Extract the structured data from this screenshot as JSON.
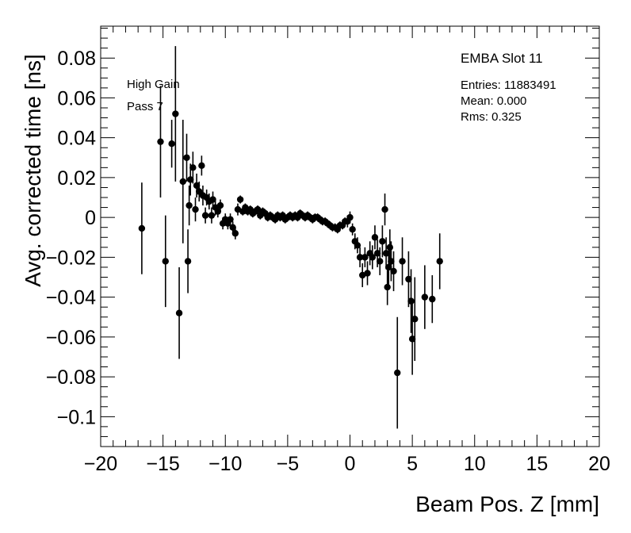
{
  "chart_data": {
    "type": "scatter",
    "xlabel": "Beam Pos. Z [mm]",
    "ylabel": "Avg. corrected time [ns]",
    "xlim": [
      -20,
      20
    ],
    "ylim": [
      -0.115,
      0.096
    ],
    "xticks": [
      -20,
      -15,
      -10,
      -5,
      0,
      5,
      10,
      15,
      20
    ],
    "xtick_labels": [
      "−20",
      "−15",
      "−10",
      "−5",
      "0",
      "5",
      "10",
      "15",
      "20"
    ],
    "yticks": [
      0.08,
      0.06,
      0.04,
      0.02,
      0,
      -0.02,
      -0.04,
      -0.06,
      -0.08,
      -0.1
    ],
    "ytick_labels": [
      "0.08",
      "0.06",
      "0.04",
      "0.02",
      "0",
      "−0.02",
      "−0.04",
      "−0.06",
      "−0.08",
      "−0.1"
    ],
    "annotations": [
      "High Gain",
      "Pass 7"
    ],
    "legend": {
      "title": "EMBA Slot 11",
      "entries": [
        "Entries: 11883491",
        "Mean: 0.000",
        "Rms: 0.325"
      ],
      "placement": "top-right"
    },
    "grid": false,
    "marker_color": "#000000",
    "points": [
      {
        "x": -16.7,
        "y": -0.0055,
        "err": 0.023
      },
      {
        "x": -15.2,
        "y": 0.038,
        "err": 0.028
      },
      {
        "x": -14.8,
        "y": -0.022,
        "err": 0.023
      },
      {
        "x": -14.3,
        "y": 0.037,
        "err": 0.012
      },
      {
        "x": -14.0,
        "y": 0.052,
        "err": 0.034
      },
      {
        "x": -13.7,
        "y": -0.048,
        "err": 0.023
      },
      {
        "x": -13.4,
        "y": 0.018,
        "err": 0.031
      },
      {
        "x": -13.1,
        "y": 0.03,
        "err": 0.012
      },
      {
        "x": -13.0,
        "y": -0.022,
        "err": 0.016
      },
      {
        "x": -12.9,
        "y": 0.006,
        "err": 0.01
      },
      {
        "x": -12.8,
        "y": 0.019,
        "err": 0.008
      },
      {
        "x": -12.6,
        "y": 0.025,
        "err": 0.008
      },
      {
        "x": -12.4,
        "y": 0.004,
        "err": 0.006
      },
      {
        "x": -12.3,
        "y": 0.016,
        "err": 0.006
      },
      {
        "x": -12.1,
        "y": 0.013,
        "err": 0.005
      },
      {
        "x": -11.9,
        "y": 0.026,
        "err": 0.005
      },
      {
        "x": -11.8,
        "y": 0.011,
        "err": 0.005
      },
      {
        "x": -11.6,
        "y": 0.001,
        "err": 0.004
      },
      {
        "x": -11.5,
        "y": 0.01,
        "err": 0.004
      },
      {
        "x": -11.3,
        "y": 0.008,
        "err": 0.004
      },
      {
        "x": -11.1,
        "y": 0.001,
        "err": 0.004
      },
      {
        "x": -11.0,
        "y": 0.009,
        "err": 0.004
      },
      {
        "x": -10.8,
        "y": 0.005,
        "err": 0.004
      },
      {
        "x": -10.6,
        "y": 0.003,
        "err": 0.003
      },
      {
        "x": -10.4,
        "y": 0.006,
        "err": 0.003
      },
      {
        "x": -10.2,
        "y": -0.003,
        "err": 0.003
      },
      {
        "x": -10.0,
        "y": -0.001,
        "err": 0.003
      },
      {
        "x": -9.8,
        "y": -0.003,
        "err": 0.003
      },
      {
        "x": -9.6,
        "y": -0.001,
        "err": 0.003
      },
      {
        "x": -9.4,
        "y": -0.005,
        "err": 0.003
      },
      {
        "x": -9.2,
        "y": -0.008,
        "err": 0.003
      },
      {
        "x": -9.0,
        "y": 0.004,
        "err": 0.003
      },
      {
        "x": -8.8,
        "y": 0.009,
        "err": 0.002
      },
      {
        "x": -8.6,
        "y": 0.003,
        "err": 0.002
      },
      {
        "x": -8.4,
        "y": 0.005,
        "err": 0.002
      },
      {
        "x": -8.2,
        "y": 0.003,
        "err": 0.002
      },
      {
        "x": -8.0,
        "y": 0.004,
        "err": 0.002
      },
      {
        "x": -7.8,
        "y": 0.002,
        "err": 0.002
      },
      {
        "x": -7.6,
        "y": 0.003,
        "err": 0.002
      },
      {
        "x": -7.4,
        "y": 0.004,
        "err": 0.002
      },
      {
        "x": -7.2,
        "y": 0.001,
        "err": 0.002
      },
      {
        "x": -7.0,
        "y": 0.003,
        "err": 0.002
      },
      {
        "x": -6.8,
        "y": 0.002,
        "err": 0.002
      },
      {
        "x": -6.6,
        "y": 0.0,
        "err": 0.002
      },
      {
        "x": -6.4,
        "y": 0.001,
        "err": 0.002
      },
      {
        "x": -6.2,
        "y": 0.0,
        "err": 0.002
      },
      {
        "x": -6.0,
        "y": -0.001,
        "err": 0.002
      },
      {
        "x": -5.8,
        "y": 0.001,
        "err": 0.002
      },
      {
        "x": -5.6,
        "y": 0.0,
        "err": 0.002
      },
      {
        "x": -5.4,
        "y": 0.001,
        "err": 0.002
      },
      {
        "x": -5.2,
        "y": -0.001,
        "err": 0.002
      },
      {
        "x": -5.0,
        "y": 0.0,
        "err": 0.002
      },
      {
        "x": -4.8,
        "y": 0.001,
        "err": 0.002
      },
      {
        "x": -4.6,
        "y": 0.0,
        "err": 0.002
      },
      {
        "x": -4.4,
        "y": 0.001,
        "err": 0.002
      },
      {
        "x": -4.2,
        "y": 0.0,
        "err": 0.002
      },
      {
        "x": -4.0,
        "y": 0.002,
        "err": 0.002
      },
      {
        "x": -3.8,
        "y": 0.001,
        "err": 0.002
      },
      {
        "x": -3.6,
        "y": 0.0,
        "err": 0.002
      },
      {
        "x": -3.4,
        "y": 0.001,
        "err": 0.002
      },
      {
        "x": -3.2,
        "y": 0.0,
        "err": 0.002
      },
      {
        "x": -3.0,
        "y": -0.001,
        "err": 0.002
      },
      {
        "x": -2.8,
        "y": 0.0,
        "err": 0.002
      },
      {
        "x": -2.6,
        "y": 0.0,
        "err": 0.002
      },
      {
        "x": -2.4,
        "y": -0.001,
        "err": 0.002
      },
      {
        "x": -2.2,
        "y": -0.002,
        "err": 0.002
      },
      {
        "x": -2.0,
        "y": -0.002,
        "err": 0.002
      },
      {
        "x": -1.8,
        "y": -0.003,
        "err": 0.002
      },
      {
        "x": -1.6,
        "y": -0.004,
        "err": 0.002
      },
      {
        "x": -1.4,
        "y": -0.005,
        "err": 0.002
      },
      {
        "x": -1.2,
        "y": -0.005,
        "err": 0.002
      },
      {
        "x": -1.0,
        "y": -0.006,
        "err": 0.002
      },
      {
        "x": -0.8,
        "y": -0.004,
        "err": 0.002
      },
      {
        "x": -0.6,
        "y": -0.004,
        "err": 0.002
      },
      {
        "x": -0.4,
        "y": -0.002,
        "err": 0.002
      },
      {
        "x": -0.2,
        "y": -0.002,
        "err": 0.003
      },
      {
        "x": 0.0,
        "y": 0.0,
        "err": 0.003
      },
      {
        "x": 0.2,
        "y": -0.006,
        "err": 0.003
      },
      {
        "x": 0.4,
        "y": -0.012,
        "err": 0.004
      },
      {
        "x": 0.6,
        "y": -0.014,
        "err": 0.004
      },
      {
        "x": 0.8,
        "y": -0.02,
        "err": 0.005
      },
      {
        "x": 1.0,
        "y": -0.029,
        "err": 0.006
      },
      {
        "x": 1.2,
        "y": -0.02,
        "err": 0.005
      },
      {
        "x": 1.4,
        "y": -0.028,
        "err": 0.006
      },
      {
        "x": 1.6,
        "y": -0.018,
        "err": 0.006
      },
      {
        "x": 1.8,
        "y": -0.02,
        "err": 0.006
      },
      {
        "x": 2.0,
        "y": -0.01,
        "err": 0.006
      },
      {
        "x": 2.2,
        "y": -0.018,
        "err": 0.007
      },
      {
        "x": 2.4,
        "y": -0.022,
        "err": 0.007
      },
      {
        "x": 2.6,
        "y": -0.012,
        "err": 0.008
      },
      {
        "x": 2.8,
        "y": 0.004,
        "err": 0.008
      },
      {
        "x": 2.9,
        "y": -0.018,
        "err": 0.008
      },
      {
        "x": 3.0,
        "y": -0.035,
        "err": 0.009
      },
      {
        "x": 3.1,
        "y": -0.025,
        "err": 0.009
      },
      {
        "x": 3.2,
        "y": -0.015,
        "err": 0.009
      },
      {
        "x": 3.3,
        "y": -0.022,
        "err": 0.01
      },
      {
        "x": 3.5,
        "y": -0.027,
        "err": 0.01
      },
      {
        "x": 3.8,
        "y": -0.078,
        "err": 0.028
      },
      {
        "x": 4.2,
        "y": -0.022,
        "err": 0.012
      },
      {
        "x": 4.7,
        "y": -0.031,
        "err": 0.014
      },
      {
        "x": 4.9,
        "y": -0.042,
        "err": 0.016
      },
      {
        "x": 5.0,
        "y": -0.061,
        "err": 0.018
      },
      {
        "x": 5.2,
        "y": -0.051,
        "err": 0.021
      },
      {
        "x": 6.0,
        "y": -0.04,
        "err": 0.016
      },
      {
        "x": 6.6,
        "y": -0.041,
        "err": 0.012
      },
      {
        "x": 7.2,
        "y": -0.022,
        "err": 0.014
      }
    ]
  }
}
